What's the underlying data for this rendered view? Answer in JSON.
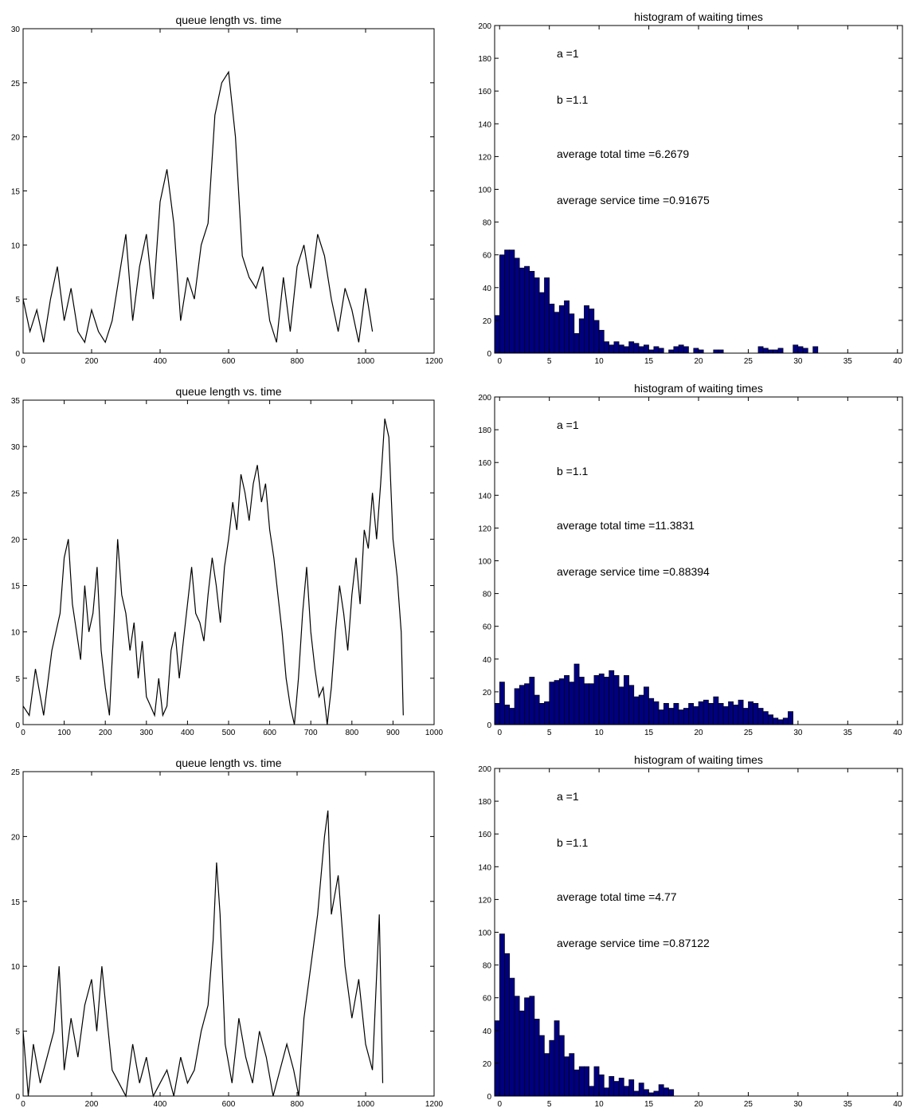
{
  "chart_data": [
    {
      "id": "r1-queue",
      "type": "line",
      "title": "queue length vs. time",
      "xlim": [
        0,
        1200
      ],
      "ylim": [
        0,
        30
      ],
      "xticks": [
        0,
        200,
        400,
        600,
        800,
        1000,
        1200
      ],
      "yticks": [
        0,
        5,
        10,
        15,
        20,
        25,
        30
      ],
      "series": [
        {
          "x": [
            0,
            20,
            40,
            60,
            80,
            100,
            120,
            140,
            160,
            180,
            200,
            220,
            240,
            260,
            280,
            300,
            320,
            340,
            360,
            380,
            400,
            420,
            440,
            460,
            480,
            500,
            520,
            540,
            560,
            580,
            600,
            620,
            640,
            660,
            680,
            700,
            720,
            740,
            760,
            780,
            800,
            820,
            840,
            860,
            880,
            900,
            920,
            940,
            960,
            980,
            1000,
            1020
          ],
          "y": [
            5,
            2,
            4,
            1,
            5,
            8,
            3,
            6,
            2,
            1,
            4,
            2,
            1,
            3,
            7,
            11,
            3,
            8,
            11,
            5,
            14,
            17,
            12,
            3,
            7,
            5,
            10,
            12,
            22,
            25,
            26,
            20,
            9,
            7,
            6,
            8,
            3,
            1,
            7,
            2,
            8,
            10,
            6,
            11,
            9,
            5,
            2,
            6,
            4,
            1,
            6,
            2
          ]
        }
      ]
    },
    {
      "id": "r1-hist",
      "type": "bar",
      "title": "histogram of waiting times",
      "xlim": [
        -0.5,
        40.5
      ],
      "ylim": [
        0,
        200
      ],
      "xticks": [
        0,
        5,
        10,
        15,
        20,
        25,
        30,
        35,
        40
      ],
      "yticks": [
        0,
        20,
        40,
        60,
        80,
        100,
        120,
        140,
        160,
        180,
        200
      ],
      "bin_start": -0.5,
      "bin_width": 0.5,
      "values": [
        23,
        60,
        63,
        63,
        58,
        52,
        53,
        50,
        46,
        37,
        46,
        30,
        25,
        29,
        32,
        24,
        12,
        21,
        29,
        27,
        20,
        14,
        7,
        5,
        7,
        5,
        4,
        7,
        6,
        4,
        5,
        2,
        4,
        3,
        0,
        2,
        4,
        5,
        4,
        0,
        3,
        2,
        0,
        0,
        2,
        2,
        0,
        0,
        0,
        0,
        0,
        0,
        0,
        4,
        3,
        2,
        2,
        3,
        0,
        0,
        5,
        4,
        3,
        0,
        4
      ],
      "annotations": [
        "a =1",
        "b =1.1",
        "average total time =6.2679",
        "average service time =0.91675"
      ]
    },
    {
      "id": "r2-queue",
      "type": "line",
      "title": "queue length vs. time",
      "xlim": [
        0,
        1000
      ],
      "ylim": [
        0,
        35
      ],
      "xticks": [
        0,
        100,
        200,
        300,
        400,
        500,
        600,
        700,
        800,
        900,
        1000
      ],
      "yticks": [
        0,
        5,
        10,
        15,
        20,
        25,
        30,
        35
      ],
      "series": [
        {
          "x": [
            0,
            15,
            30,
            50,
            70,
            90,
            100,
            110,
            120,
            130,
            140,
            150,
            160,
            170,
            180,
            190,
            200,
            210,
            220,
            230,
            240,
            250,
            260,
            270,
            280,
            290,
            300,
            310,
            320,
            330,
            340,
            350,
            360,
            370,
            380,
            390,
            400,
            410,
            420,
            430,
            440,
            450,
            460,
            470,
            480,
            490,
            500,
            510,
            520,
            530,
            540,
            550,
            560,
            570,
            580,
            590,
            600,
            610,
            620,
            630,
            640,
            650,
            660,
            670,
            680,
            690,
            700,
            710,
            720,
            730,
            740,
            750,
            760,
            770,
            780,
            790,
            800,
            810,
            820,
            830,
            840,
            850,
            860,
            870,
            880,
            890,
            900,
            910,
            920,
            925
          ],
          "y": [
            2,
            1,
            6,
            1,
            8,
            12,
            18,
            20,
            13,
            10,
            7,
            15,
            10,
            12,
            17,
            8,
            4,
            1,
            10,
            20,
            14,
            12,
            8,
            11,
            5,
            9,
            3,
            2,
            1,
            5,
            1,
            2,
            8,
            10,
            5,
            9,
            13,
            17,
            12,
            11,
            9,
            14,
            18,
            15,
            11,
            17,
            20,
            24,
            21,
            27,
            25,
            22,
            26,
            28,
            24,
            26,
            21,
            18,
            14,
            10,
            5,
            2,
            0,
            5,
            12,
            17,
            10,
            6,
            3,
            4,
            0,
            4,
            10,
            15,
            12,
            8,
            14,
            18,
            13,
            21,
            19,
            25,
            20,
            26,
            33,
            31,
            20,
            16,
            10,
            1
          ]
        }
      ]
    },
    {
      "id": "r2-hist",
      "type": "bar",
      "title": "histogram of waiting times",
      "xlim": [
        -0.5,
        40.5
      ],
      "ylim": [
        0,
        200
      ],
      "xticks": [
        0,
        5,
        10,
        15,
        20,
        25,
        30,
        35,
        40
      ],
      "yticks": [
        0,
        20,
        40,
        60,
        80,
        100,
        120,
        140,
        160,
        180,
        200
      ],
      "bin_start": -0.5,
      "bin_width": 0.5,
      "values": [
        13,
        26,
        12,
        10,
        22,
        24,
        25,
        29,
        18,
        13,
        14,
        26,
        27,
        28,
        30,
        26,
        37,
        29,
        25,
        25,
        30,
        31,
        29,
        33,
        30,
        23,
        30,
        24,
        17,
        18,
        23,
        16,
        14,
        9,
        13,
        10,
        13,
        9,
        10,
        13,
        11,
        14,
        15,
        13,
        17,
        13,
        11,
        14,
        12,
        15,
        10,
        14,
        13,
        10,
        8,
        6,
        4,
        3,
        4,
        8,
        0,
        0,
        0,
        0,
        0
      ],
      "annotations": [
        "a =1",
        "b =1.1",
        "average total time =11.3831",
        "average service time =0.88394"
      ]
    },
    {
      "id": "r3-queue",
      "type": "line",
      "title": "queue length vs. time",
      "xlim": [
        0,
        1200
      ],
      "ylim": [
        0,
        25
      ],
      "xticks": [
        0,
        200,
        400,
        600,
        800,
        1000,
        1200
      ],
      "yticks": [
        0,
        5,
        10,
        15,
        20,
        25
      ],
      "series": [
        {
          "x": [
            0,
            15,
            30,
            50,
            70,
            90,
            105,
            120,
            140,
            160,
            180,
            200,
            215,
            230,
            245,
            260,
            280,
            300,
            320,
            340,
            360,
            380,
            400,
            420,
            440,
            460,
            480,
            500,
            520,
            540,
            555,
            565,
            575,
            590,
            610,
            630,
            650,
            670,
            690,
            710,
            730,
            750,
            770,
            790,
            805,
            820,
            840,
            860,
            880,
            890,
            900,
            920,
            940,
            960,
            980,
            1000,
            1020,
            1040,
            1050
          ],
          "y": [
            5,
            0,
            4,
            1,
            3,
            5,
            10,
            2,
            6,
            3,
            7,
            9,
            5,
            10,
            6,
            2,
            1,
            0,
            4,
            1,
            3,
            0,
            1,
            2,
            0,
            3,
            1,
            2,
            5,
            7,
            12,
            18,
            14,
            4,
            1,
            6,
            3,
            1,
            5,
            3,
            0,
            2,
            4,
            2,
            0,
            6,
            10,
            14,
            20,
            22,
            14,
            17,
            10,
            6,
            9,
            4,
            2,
            14,
            1
          ]
        }
      ]
    },
    {
      "id": "r3-hist",
      "type": "bar",
      "title": "histogram of waiting times",
      "xlim": [
        -0.5,
        40.5
      ],
      "ylim": [
        0,
        200
      ],
      "xticks": [
        0,
        5,
        10,
        15,
        20,
        25,
        30,
        35,
        40
      ],
      "yticks": [
        0,
        20,
        40,
        60,
        80,
        100,
        120,
        140,
        160,
        180,
        200
      ],
      "bin_start": -0.5,
      "bin_width": 0.5,
      "values": [
        46,
        99,
        87,
        72,
        61,
        52,
        60,
        61,
        47,
        37,
        26,
        34,
        46,
        37,
        24,
        26,
        16,
        18,
        18,
        6,
        18,
        13,
        5,
        12,
        9,
        11,
        6,
        10,
        3,
        8,
        4,
        2,
        3,
        7,
        5,
        4,
        0,
        0,
        0,
        0,
        0,
        0,
        0,
        0,
        0,
        0,
        0,
        0,
        0,
        0,
        0,
        0,
        0,
        0,
        0,
        0,
        0,
        0,
        0,
        0,
        0,
        0,
        0,
        0,
        0
      ],
      "annotations": [
        "a =1",
        "b =1.1",
        "average total time =4.77",
        "average service time =0.87122"
      ]
    }
  ]
}
